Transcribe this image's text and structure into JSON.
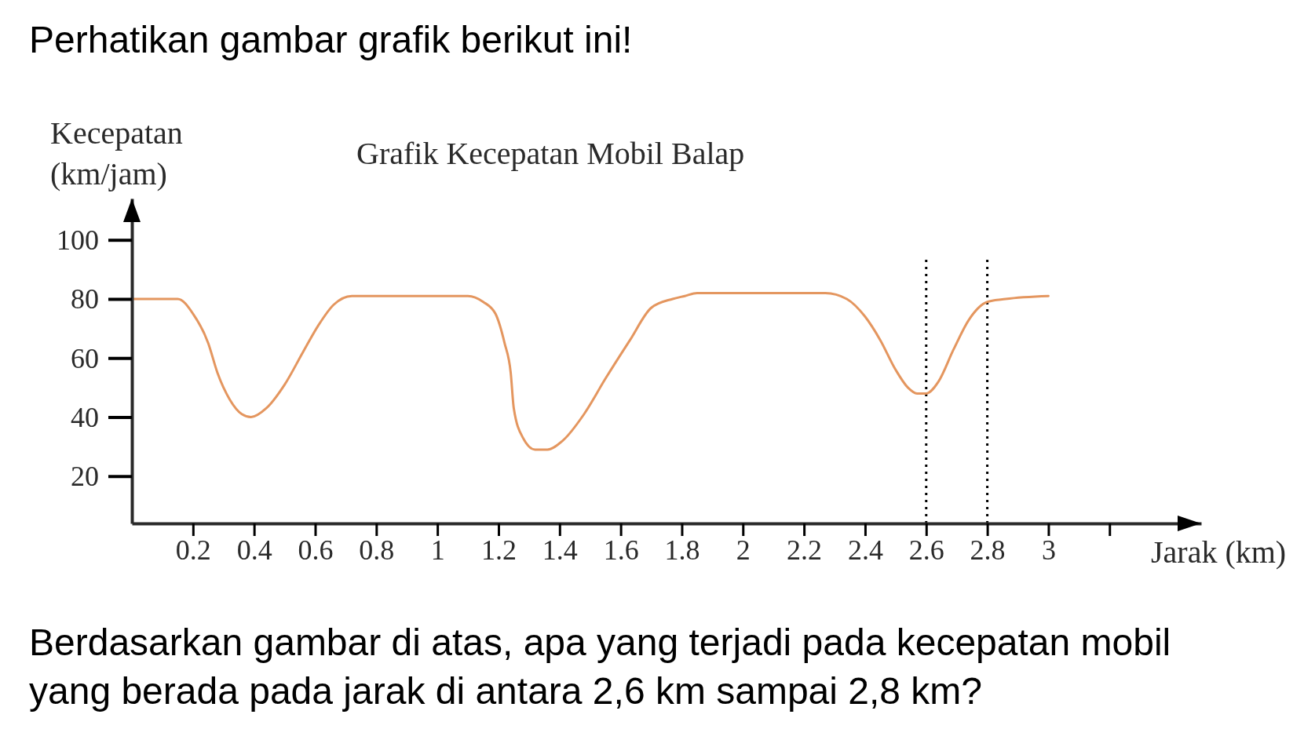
{
  "chart_data": {
    "type": "line",
    "title": "Grafik Kecepatan Mobil Balap",
    "xlabel": "Jarak (km)",
    "ylabel": "Kecepatan (km/jam)",
    "annotations": [
      "Perhatikan gambar grafik berikut ini!",
      "Berdasarkan gambar di atas, apa yang terjadi pada kecepatan mobil yang berada pada jarak di antara 2,6 km sampai 2,8 km?"
    ],
    "x": [
      0,
      0.15,
      0.2,
      0.25,
      0.28,
      0.32,
      0.36,
      0.39,
      0.44,
      0.5,
      0.56,
      0.61,
      0.66,
      0.72,
      0.8,
      0.9,
      1,
      1.1,
      1.15,
      1.19,
      1.22,
      1.24,
      1.25,
      1.28,
      1.32,
      1.36,
      1.41,
      1.48,
      1.55,
      1.63,
      1.7,
      1.77,
      1.81,
      1.85,
      2,
      2.1,
      2.27,
      2.34,
      2.4,
      2.45,
      2.5,
      2.54,
      2.57,
      2.6,
      2.64,
      2.69,
      2.74,
      2.8,
      2.86,
      3
    ],
    "series": [
      {
        "color": "#e4965f",
        "values": [
          80,
          80,
          75,
          65,
          55,
          46,
          41,
          40,
          43,
          51,
          62,
          71,
          78,
          81,
          81,
          81,
          81,
          81,
          79,
          75,
          65,
          55,
          43,
          33,
          29,
          29,
          32,
          41,
          53,
          66,
          77,
          80,
          81,
          82,
          82,
          82,
          82,
          80,
          74,
          66,
          56,
          50,
          48,
          48,
          52,
          63,
          73,
          79,
          80,
          81
        ]
      }
    ],
    "xlim": [
      0,
      3.5
    ],
    "ylim": [
      4,
      114
    ],
    "xticks": [
      0.2,
      0.4,
      0.6,
      0.8,
      1,
      1.2,
      1.4,
      1.6,
      1.8,
      2,
      2.2,
      2.4,
      2.6,
      2.8,
      3,
      {
        "value": 3.2,
        "label": null
      }
    ],
    "yticks": [
      20,
      40,
      60,
      80,
      100
    ],
    "ref_lines": [
      {
        "axis": "x",
        "value": 2.6,
        "color": "#000000",
        "line_style": "dotted"
      },
      {
        "axis": "x",
        "value": 2.8,
        "color": "#000000",
        "line_style": "dotted"
      }
    ]
  }
}
